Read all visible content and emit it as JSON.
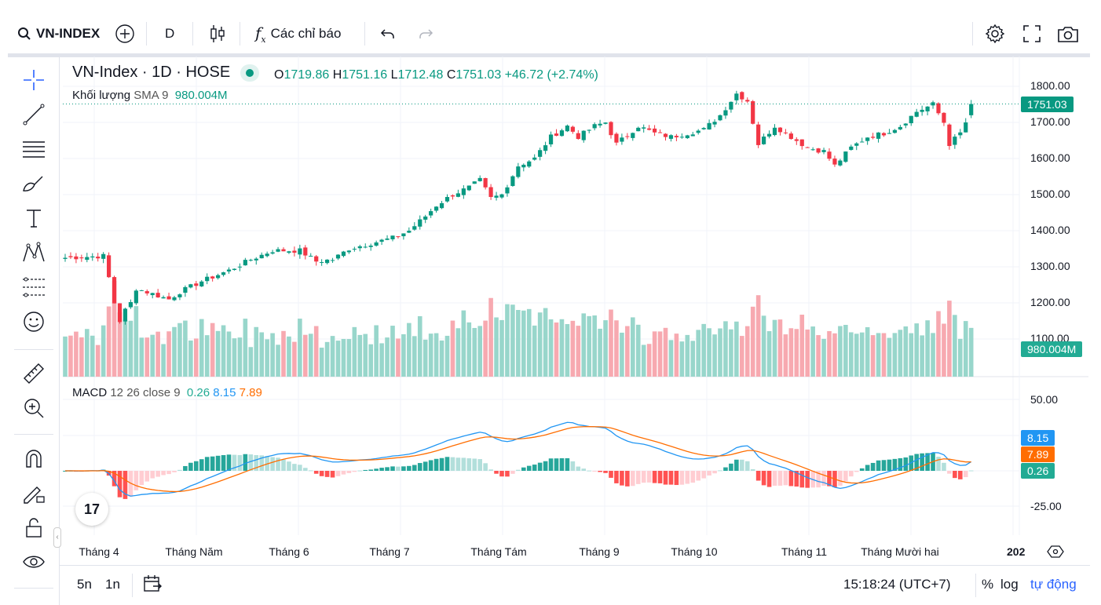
{
  "toolbar": {
    "symbol": "VN-INDEX",
    "interval": "D",
    "indicators": "Các chỉ báo"
  },
  "legend": {
    "title": "VN-Index · 1D · HOSE",
    "o_label": "O",
    "o": "1719.86",
    "h_label": "H",
    "h": "1751.16",
    "l_label": "L",
    "l": "1712.48",
    "c_label": "C",
    "c": "1751.03",
    "change": "+46.72 (+2.74%)",
    "volume_name": "Khối lượng",
    "volume_params": "SMA 9",
    "volume_value": "980.004M"
  },
  "macd_legend": {
    "name": "MACD",
    "params": "12 26 close 9",
    "hist": "0.26",
    "macd": "8.15",
    "signal": "7.89"
  },
  "price_axis": [
    "1800.00",
    "1700.00",
    "1600.00",
    "1500.00",
    "1400.00",
    "1300.00",
    "1200.00",
    "1100.00"
  ],
  "price_ticks": [
    1800,
    1700,
    1600,
    1500,
    1400,
    1300,
    1200,
    1100
  ],
  "macd_axis": [
    "50.00",
    "-25.00"
  ],
  "tags": {
    "last_price": "1751.03",
    "volume": "980.004M",
    "macd": "8.15",
    "signal": "7.89",
    "hist": "0.26"
  },
  "time_axis": [
    "Tháng 4",
    "Tháng Năm",
    "Tháng 6",
    "Tháng 7",
    "Tháng Tám",
    "Tháng 9",
    "Tháng 10",
    "Tháng 11",
    "Tháng Mười hai",
    "202"
  ],
  "bottom": {
    "range_5y": "5n",
    "range_1y": "1n",
    "clock": "15:18:24 (UTC+7)",
    "percent": "%",
    "log": "log",
    "auto": "tự động"
  },
  "colors": {
    "up": "#089981",
    "down": "#f23645",
    "macd": "#2196f3",
    "signal": "#ff6d00",
    "accent": "#2962ff"
  },
  "chart_data": {
    "type": "candlestick",
    "bars": 167,
    "key_closes": [
      [
        0,
        1325
      ],
      [
        7,
        1330
      ],
      [
        8,
        1270
      ],
      [
        9,
        1200
      ],
      [
        10,
        1150
      ],
      [
        11,
        1180
      ],
      [
        12,
        1200
      ],
      [
        13,
        1240
      ],
      [
        17,
        1220
      ],
      [
        19,
        1210
      ],
      [
        21,
        1230
      ],
      [
        25,
        1260
      ],
      [
        30,
        1290
      ],
      [
        34,
        1320
      ],
      [
        38,
        1345
      ],
      [
        43,
        1345
      ],
      [
        46,
        1315
      ],
      [
        49,
        1320
      ],
      [
        52,
        1350
      ],
      [
        56,
        1365
      ],
      [
        60,
        1380
      ],
      [
        63,
        1400
      ],
      [
        66,
        1440
      ],
      [
        68,
        1470
      ],
      [
        71,
        1500
      ],
      [
        74,
        1520
      ],
      [
        76,
        1540
      ],
      [
        78,
        1490
      ],
      [
        80,
        1500
      ],
      [
        83,
        1580
      ],
      [
        86,
        1600
      ],
      [
        89,
        1660
      ],
      [
        92,
        1690
      ],
      [
        94,
        1660
      ],
      [
        97,
        1690
      ],
      [
        99,
        1700
      ],
      [
        101,
        1640
      ],
      [
        105,
        1690
      ],
      [
        108,
        1670
      ],
      [
        111,
        1660
      ],
      [
        114,
        1670
      ],
      [
        117,
        1680
      ],
      [
        120,
        1720
      ],
      [
        123,
        1780
      ],
      [
        125,
        1760
      ],
      [
        127,
        1640
      ],
      [
        130,
        1690
      ],
      [
        133,
        1660
      ],
      [
        136,
        1630
      ],
      [
        139,
        1620
      ],
      [
        141,
        1580
      ],
      [
        144,
        1630
      ],
      [
        147,
        1660
      ],
      [
        150,
        1670
      ],
      [
        153,
        1690
      ],
      [
        156,
        1730
      ],
      [
        159,
        1750
      ],
      [
        161,
        1700
      ],
      [
        162,
        1640
      ],
      [
        164,
        1670
      ],
      [
        165,
        1700
      ],
      [
        166,
        1751
      ]
    ],
    "price_range": [
      1075,
      1820
    ],
    "macd_range": [
      -35,
      60
    ]
  }
}
